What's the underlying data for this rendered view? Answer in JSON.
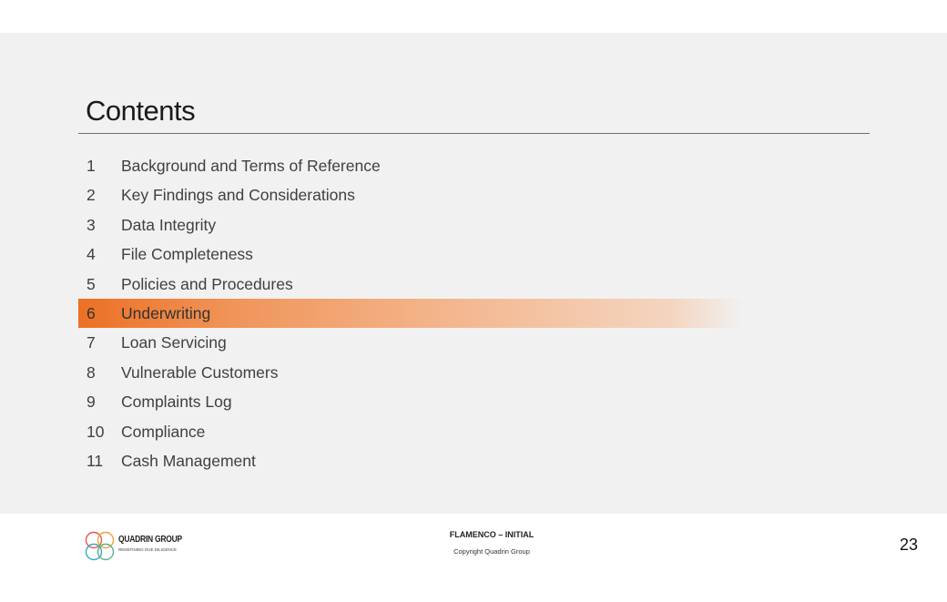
{
  "title": "Contents",
  "toc": [
    {
      "number": "1",
      "label": "Background and Terms of Reference",
      "active": false
    },
    {
      "number": "2",
      "label": "Key Findings and Considerations",
      "active": false
    },
    {
      "number": "3",
      "label": "Data Integrity",
      "active": false
    },
    {
      "number": "4",
      "label": "File Completeness",
      "active": false
    },
    {
      "number": "5",
      "label": "Policies and Procedures",
      "active": false
    },
    {
      "number": "6",
      "label": "Underwriting",
      "active": true
    },
    {
      "number": "7",
      "label": "Loan Servicing",
      "active": false
    },
    {
      "number": "8",
      "label": "Vulnerable Customers",
      "active": false
    },
    {
      "number": "9",
      "label": "Complaints Log",
      "active": false
    },
    {
      "number": "10",
      "label": "Compliance",
      "active": false
    },
    {
      "number": "11",
      "label": "Cash Management",
      "active": false
    }
  ],
  "footer": {
    "logo_name": "QUADRIN GROUP",
    "logo_tagline": "REDEFINING DUE DILIGENCE",
    "document_title": "FLAMENCO – INITIAL",
    "copyright": "Copyright Quadrin Group",
    "page_number": "23"
  },
  "colors": {
    "highlight": "#ec7025",
    "background": "#f1f1f1",
    "logo_circles": [
      "#e05a4f",
      "#f0a040",
      "#3aa6c4",
      "#5bb08a"
    ]
  }
}
